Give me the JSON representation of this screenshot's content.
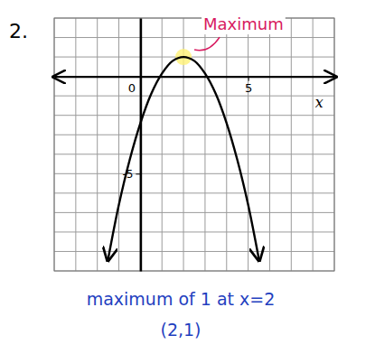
{
  "chart_data": {
    "type": "line",
    "title": "2.",
    "x_label": "x",
    "x": [
      -1.5,
      -1,
      -0.5,
      0,
      0.5,
      1,
      1.5,
      2,
      2.5,
      3,
      3.5,
      4,
      4.5,
      5,
      5.5
    ],
    "series": [
      {
        "color": "#000000",
        "values": [
          -9.4,
          -6.6,
          -4.3,
          -2.4,
          -0.9,
          0.15,
          0.8,
          1,
          0.8,
          0.15,
          -0.9,
          -2.4,
          -4.3,
          -6.6,
          -9.4
        ]
      }
    ],
    "xlim": [
      -4,
      9
    ],
    "ylim": [
      -10,
      3
    ],
    "xticks": [
      0,
      5
    ],
    "yticks": [
      -5
    ],
    "grid": true,
    "annotations": [
      {
        "text": "Maximum",
        "x": 2,
        "y": 1,
        "color": "#d81b60"
      },
      {
        "text": "maximum of 1 at x=2",
        "color": "#1f3fbf"
      },
      {
        "text": "(2,1)",
        "color": "#1f3fbf"
      }
    ]
  }
}
